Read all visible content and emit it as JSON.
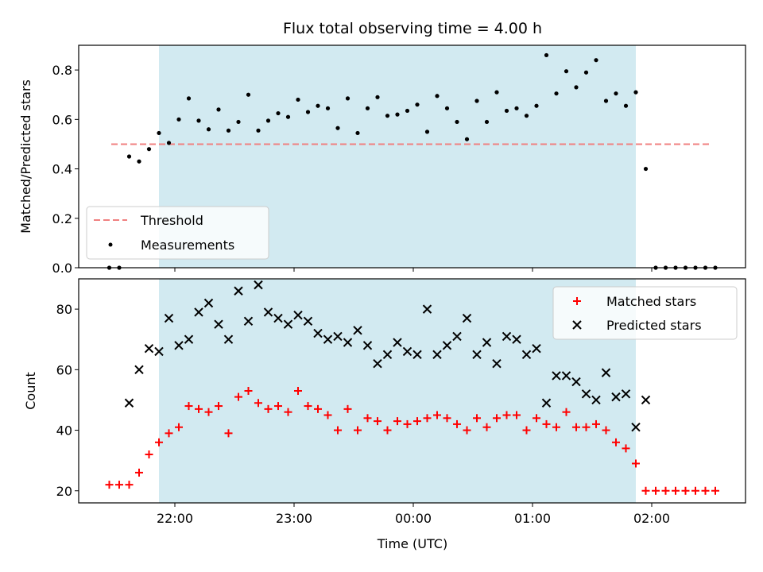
{
  "chart_data": [
    {
      "type": "scatter",
      "title": "Flux total observing time = 4.00 h",
      "xlabel": "",
      "ylabel": "Matched/Predicted stars",
      "x_axis": "time-of-day (UTC), shared with lower panel",
      "ylim": [
        0,
        0.9
      ],
      "yticks": [
        "0.0",
        "0.2",
        "0.4",
        "0.6",
        "0.8"
      ],
      "observing_window": [
        "21:52",
        "01:52"
      ],
      "observing_window_color": "#add8e6",
      "threshold": {
        "name": "Threshold",
        "value": 0.5,
        "from": "21:28",
        "to": "02:30",
        "color": "#f08080",
        "style": "dashed"
      },
      "series": [
        {
          "name": "Measurements",
          "color": "#000000",
          "marker": "dot",
          "x": [
            "21:27",
            "21:32",
            "21:37",
            "21:42",
            "21:47",
            "21:52",
            "21:57",
            "22:02",
            "22:07",
            "22:12",
            "22:17",
            "22:22",
            "22:27",
            "22:32",
            "22:37",
            "22:42",
            "22:47",
            "22:52",
            "22:57",
            "23:02",
            "23:07",
            "23:12",
            "23:17",
            "23:22",
            "23:27",
            "23:32",
            "23:37",
            "23:42",
            "23:47",
            "23:52",
            "23:57",
            "00:02",
            "00:07",
            "00:12",
            "00:17",
            "00:22",
            "00:27",
            "00:32",
            "00:37",
            "00:42",
            "00:47",
            "00:52",
            "00:57",
            "01:02",
            "01:07",
            "01:12",
            "01:17",
            "01:22",
            "01:27",
            "01:32",
            "01:37",
            "01:42",
            "01:47",
            "01:52",
            "01:57",
            "02:02",
            "02:07",
            "02:12",
            "02:17",
            "02:22",
            "02:27",
            "02:32"
          ],
          "values": [
            0.0,
            0.0,
            0.45,
            0.43,
            0.48,
            0.545,
            0.505,
            0.6,
            0.685,
            0.595,
            0.56,
            0.64,
            0.555,
            0.59,
            0.7,
            0.555,
            0.595,
            0.625,
            0.61,
            0.68,
            0.63,
            0.655,
            0.645,
            0.565,
            0.685,
            0.545,
            0.645,
            0.69,
            0.615,
            0.62,
            0.635,
            0.66,
            0.55,
            0.695,
            0.645,
            0.59,
            0.52,
            0.675,
            0.59,
            0.71,
            0.635,
            0.645,
            0.615,
            0.655,
            0.86,
            0.705,
            0.795,
            0.73,
            0.79,
            0.84,
            0.675,
            0.705,
            0.655,
            0.71,
            0.4,
            0.0,
            0.0,
            0.0,
            0.0,
            0.0,
            0.0,
            0.0
          ]
        }
      ],
      "legend": {
        "position": "lower left"
      }
    },
    {
      "type": "scatter",
      "title": "",
      "xlabel": "Time (UTC)",
      "ylabel": "Count",
      "ylim": [
        16,
        90
      ],
      "yticks": [
        "20",
        "40",
        "60",
        "80"
      ],
      "xticks": [
        "22:00",
        "23:00",
        "00:00",
        "01:00",
        "02:00"
      ],
      "observing_window": [
        "21:52",
        "01:52"
      ],
      "series": [
        {
          "name": "Matched stars",
          "color": "#ff0000",
          "marker": "plus",
          "x": [
            "21:27",
            "21:32",
            "21:37",
            "21:42",
            "21:47",
            "21:52",
            "21:57",
            "22:02",
            "22:07",
            "22:12",
            "22:17",
            "22:22",
            "22:27",
            "22:32",
            "22:37",
            "22:42",
            "22:47",
            "22:52",
            "22:57",
            "23:02",
            "23:07",
            "23:12",
            "23:17",
            "23:22",
            "23:27",
            "23:32",
            "23:37",
            "23:42",
            "23:47",
            "23:52",
            "23:57",
            "00:02",
            "00:07",
            "00:12",
            "00:17",
            "00:22",
            "00:27",
            "00:32",
            "00:37",
            "00:42",
            "00:47",
            "00:52",
            "00:57",
            "01:02",
            "01:07",
            "01:12",
            "01:17",
            "01:22",
            "01:27",
            "01:32",
            "01:37",
            "01:42",
            "01:47",
            "01:52",
            "01:57",
            "02:02",
            "02:07",
            "02:12",
            "02:17",
            "02:22",
            "02:27",
            "02:32"
          ],
          "values": [
            22,
            22,
            22,
            26,
            32,
            36,
            39,
            41,
            48,
            47,
            46,
            48,
            39,
            51,
            53,
            49,
            47,
            48,
            46,
            53,
            48,
            47,
            45,
            40,
            47,
            40,
            44,
            43,
            40,
            43,
            42,
            43,
            44,
            45,
            44,
            42,
            40,
            44,
            41,
            44,
            45,
            45,
            40,
            44,
            42,
            41,
            46,
            41,
            41,
            42,
            40,
            36,
            34,
            29,
            20,
            20,
            20,
            20,
            20,
            20,
            20,
            20
          ]
        },
        {
          "name": "Predicted stars",
          "color": "#000000",
          "marker": "x",
          "x": [
            "21:37",
            "21:42",
            "21:47",
            "21:52",
            "21:57",
            "22:02",
            "22:07",
            "22:12",
            "22:17",
            "22:22",
            "22:27",
            "22:32",
            "22:37",
            "22:42",
            "22:47",
            "22:52",
            "22:57",
            "23:02",
            "23:07",
            "23:12",
            "23:17",
            "23:22",
            "23:27",
            "23:32",
            "23:37",
            "23:42",
            "23:47",
            "23:52",
            "23:57",
            "00:02",
            "00:07",
            "00:12",
            "00:17",
            "00:22",
            "00:27",
            "00:32",
            "00:37",
            "00:42",
            "00:47",
            "00:52",
            "00:57",
            "01:02",
            "01:07",
            "01:12",
            "01:17",
            "01:22",
            "01:27",
            "01:32",
            "01:37",
            "01:42",
            "01:47",
            "01:52",
            "01:57"
          ],
          "values": [
            49,
            60,
            67,
            66,
            77,
            68,
            70,
            79,
            82,
            75,
            70,
            86,
            76,
            88,
            79,
            77,
            75,
            78,
            76,
            72,
            70,
            71,
            69,
            73,
            68,
            62,
            65,
            69,
            66,
            65,
            80,
            65,
            68,
            71,
            77,
            65,
            69,
            62,
            71,
            70,
            65,
            67,
            49,
            58,
            58,
            56,
            52,
            50,
            59,
            51,
            52,
            41,
            50
          ]
        }
      ],
      "legend": {
        "position": "upper right"
      }
    }
  ]
}
